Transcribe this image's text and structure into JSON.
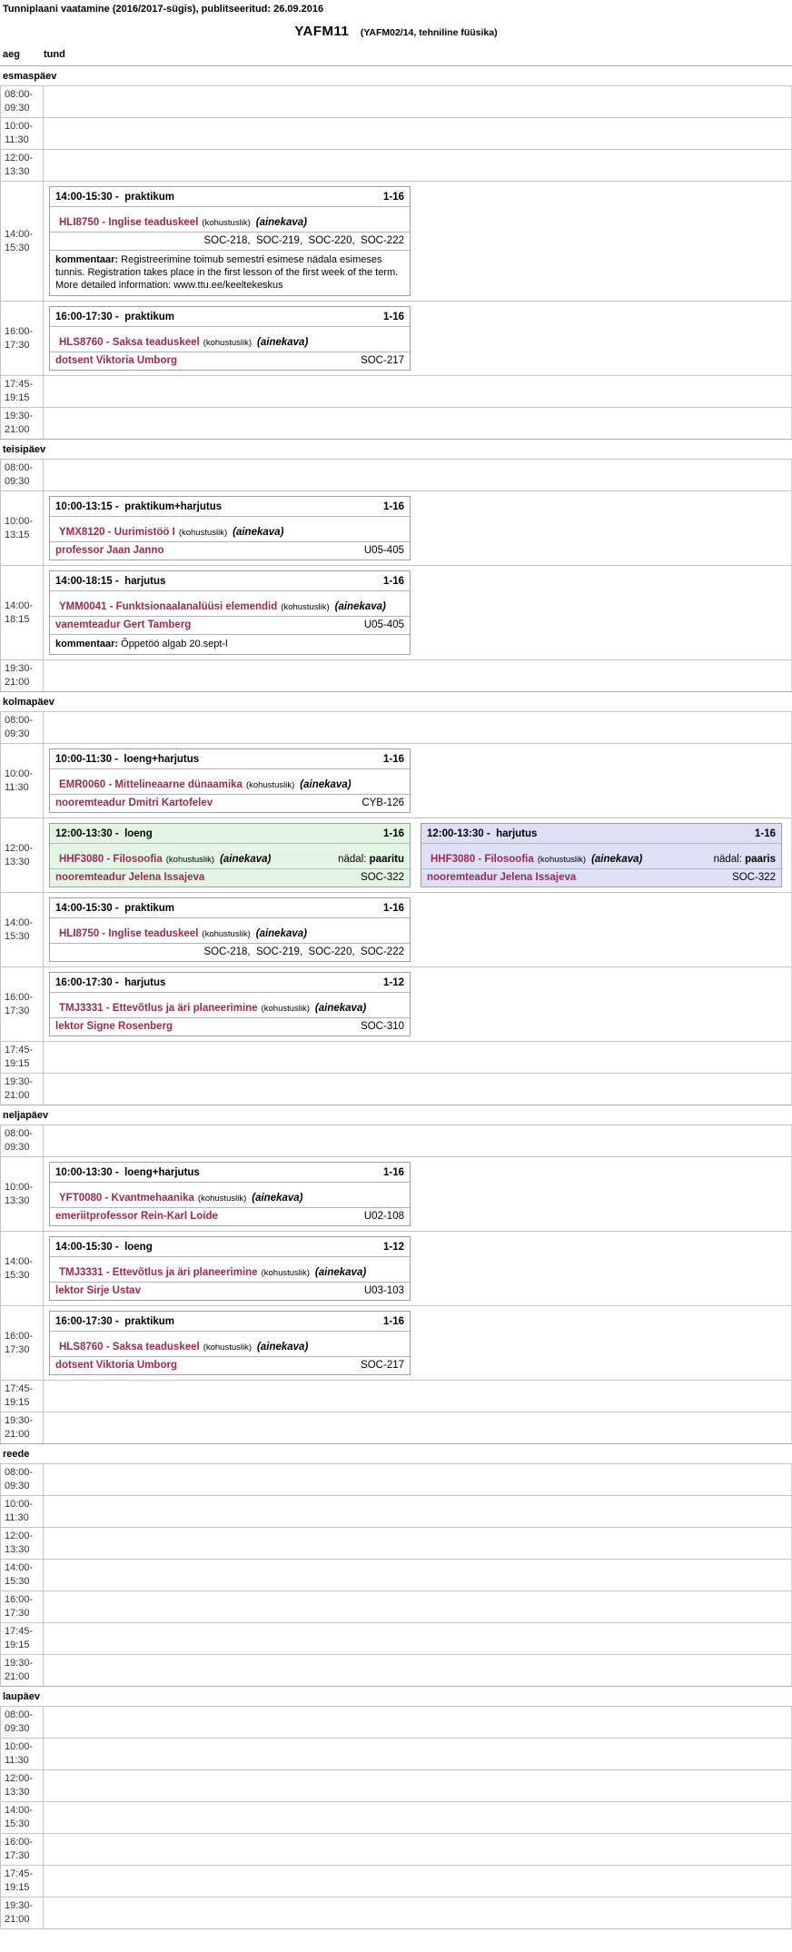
{
  "page": {
    "header": "Tunniplaani vaatamine (2016/2017-sügis), publitseeritud: 26.09.2016",
    "title": "YAFM11",
    "subtitle": "(YAFM02/14, tehniline füüsika)",
    "col_time": "aeg",
    "col_lesson": "tund",
    "comment_label": "kommentaar:"
  },
  "colors": {
    "accent": "#982b52",
    "odd_week_bg": "#e3f6e3",
    "even_week_bg": "#dfdff7",
    "row_border": "#c3c3c3",
    "box_border": "#9e9e9e"
  },
  "days": [
    {
      "name": "esmaspäev",
      "rows": [
        {
          "time": [
            "08:00-",
            "09:30"
          ],
          "events": []
        },
        {
          "time": [
            "10:00-",
            "11:30"
          ],
          "events": []
        },
        {
          "time": [
            "12:00-",
            "13:30"
          ],
          "events": []
        },
        {
          "time": [
            "14:00-",
            "15:30"
          ],
          "events": [
            {
              "title": "14:00-15:30 -  praktikum",
              "weeks": "1-16",
              "course": "HLI8750 - Inglise teaduskeel",
              "mandatory": "(kohustuslik)",
              "ainekava": "(ainekava)",
              "lecturer": "",
              "rooms": "SOC-218,  SOC-219,  SOC-220,  SOC-222",
              "comment": "Registreerimine toimub semestri esimese nädala esimeses tunnis. Registration takes place in the first lesson of the first week of the term. More detailed information: www.ttu.ee/keeltekeskus",
              "variant": "default"
            }
          ]
        },
        {
          "time": [
            "16:00-",
            "17:30"
          ],
          "events": [
            {
              "title": "16:00-17:30 -  praktikum",
              "weeks": "1-16",
              "course": "HLS8760 - Saksa teaduskeel",
              "mandatory": "(kohustuslik)",
              "ainekava": "(ainekava)",
              "lecturer": "dotsent Viktoria Umborg",
              "rooms": "SOC-217",
              "variant": "default"
            }
          ]
        },
        {
          "time": [
            "17:45-",
            "19:15"
          ],
          "events": []
        },
        {
          "time": [
            "19:30-",
            "21:00"
          ],
          "events": []
        }
      ]
    },
    {
      "name": "teisipäev",
      "rows": [
        {
          "time": [
            "08:00-",
            "09:30"
          ],
          "events": []
        },
        {
          "time": [
            "10:00-",
            "13:15"
          ],
          "events": [
            {
              "title": "10:00-13:15 -  praktikum+harjutus",
              "weeks": "1-16",
              "course": "YMX8120 - Uurimistöö I",
              "mandatory": "(kohustuslik)",
              "ainekava": "(ainekava)",
              "lecturer": "professor Jaan Janno",
              "rooms": "U05-405",
              "variant": "default"
            }
          ]
        },
        {
          "time": [
            "14:00-",
            "18:15"
          ],
          "events": [
            {
              "title": "14:00-18:15 -  harjutus",
              "weeks": "1-16",
              "course": "YMM0041 - Funktsionaalanalüüsi elemendid",
              "mandatory": "(kohustuslik)",
              "ainekava": "(ainekava)",
              "lecturer": "vanemteadur Gert Tamberg",
              "rooms": "U05-405",
              "comment": "Õppetöö algab 20.sept-l",
              "variant": "default"
            }
          ]
        },
        {
          "time": [
            "19:30-",
            "21:00"
          ],
          "events": []
        }
      ]
    },
    {
      "name": "kolmapäev",
      "rows": [
        {
          "time": [
            "08:00-",
            "09:30"
          ],
          "events": []
        },
        {
          "time": [
            "10:00-",
            "11:30"
          ],
          "events": [
            {
              "title": "10:00-11:30 -  loeng+harjutus",
              "weeks": "1-16",
              "course": "EMR0060 - Mittelineaarne dünaamika",
              "mandatory": "(kohustuslik)",
              "ainekava": "(ainekava)",
              "lecturer": "nooremteadur Dmitri Kartofelev",
              "rooms": "CYB-126",
              "variant": "default"
            }
          ]
        },
        {
          "time": [
            "12:00-",
            "13:30"
          ],
          "events": [
            {
              "title": "12:00-13:30 -  loeng",
              "weeks": "1-16",
              "course": "HHF3080 - Filosoofia",
              "mandatory": "(kohustuslik)",
              "ainekava": "(ainekava)",
              "week_note": {
                "label": "nädal:",
                "value": "paaritu"
              },
              "lecturer": "nooremteadur Jelena Issajeva",
              "rooms": "SOC-322",
              "variant": "green"
            },
            {
              "title": "12:00-13:30 -  harjutus",
              "weeks": "1-16",
              "course": "HHF3080 - Filosoofia",
              "mandatory": "(kohustuslik)",
              "ainekava": "(ainekava)",
              "week_note": {
                "label": "nädal:",
                "value": "paaris"
              },
              "lecturer": "nooremteadur Jelena Issajeva",
              "rooms": "SOC-322",
              "variant": "purple"
            }
          ]
        },
        {
          "time": [
            "14:00-",
            "15:30"
          ],
          "events": [
            {
              "title": "14:00-15:30 -  praktikum",
              "weeks": "1-16",
              "course": "HLI8750 - Inglise teaduskeel",
              "mandatory": "(kohustuslik)",
              "ainekava": "(ainekava)",
              "lecturer": "",
              "rooms": "SOC-218,  SOC-219,  SOC-220,  SOC-222",
              "variant": "default"
            }
          ]
        },
        {
          "time": [
            "16:00-",
            "17:30"
          ],
          "events": [
            {
              "title": "16:00-17:30 -  harjutus",
              "weeks": "1-12",
              "course": "TMJ3331 - Ettevõtlus ja äri planeerimine",
              "mandatory": "(kohustuslik)",
              "ainekava": "(ainekava)",
              "lecturer": "lektor Signe Rosenberg",
              "rooms": "SOC-310",
              "variant": "default"
            }
          ]
        },
        {
          "time": [
            "17:45-",
            "19:15"
          ],
          "events": []
        },
        {
          "time": [
            "19:30-",
            "21:00"
          ],
          "events": []
        }
      ]
    },
    {
      "name": "neljapäev",
      "rows": [
        {
          "time": [
            "08:00-",
            "09:30"
          ],
          "events": []
        },
        {
          "time": [
            "10:00-",
            "13:30"
          ],
          "events": [
            {
              "title": "10:00-13:30 -  loeng+harjutus",
              "weeks": "1-16",
              "course": "YFT0080 - Kvantmehaanika",
              "mandatory": "(kohustuslik)",
              "ainekava": "(ainekava)",
              "lecturer": "emeriitprofessor Rein-Karl Loide",
              "rooms": "U02-108",
              "variant": "default"
            }
          ]
        },
        {
          "time": [
            "14:00-",
            "15:30"
          ],
          "events": [
            {
              "title": "14:00-15:30 -  loeng",
              "weeks": "1-12",
              "course": "TMJ3331 - Ettevõtlus ja äri planeerimine",
              "mandatory": "(kohustuslik)",
              "ainekava": "(ainekava)",
              "lecturer": "lektor Sirje Ustav",
              "rooms": "U03-103",
              "variant": "default"
            }
          ]
        },
        {
          "time": [
            "16:00-",
            "17:30"
          ],
          "events": [
            {
              "title": "16:00-17:30 -  praktikum",
              "weeks": "1-16",
              "course": "HLS8760 - Saksa teaduskeel",
              "mandatory": "(kohustuslik)",
              "ainekava": "(ainekava)",
              "lecturer": "dotsent Viktoria Umborg",
              "rooms": "SOC-217",
              "variant": "default"
            }
          ]
        },
        {
          "time": [
            "17:45-",
            "19:15"
          ],
          "events": []
        },
        {
          "time": [
            "19:30-",
            "21:00"
          ],
          "events": []
        }
      ]
    },
    {
      "name": "reede",
      "rows": [
        {
          "time": [
            "08:00-",
            "09:30"
          ],
          "events": []
        },
        {
          "time": [
            "10:00-",
            "11:30"
          ],
          "events": []
        },
        {
          "time": [
            "12:00-",
            "13:30"
          ],
          "events": []
        },
        {
          "time": [
            "14:00-",
            "15:30"
          ],
          "events": []
        },
        {
          "time": [
            "16:00-",
            "17:30"
          ],
          "events": []
        },
        {
          "time": [
            "17:45-",
            "19:15"
          ],
          "events": []
        },
        {
          "time": [
            "19:30-",
            "21:00"
          ],
          "events": []
        }
      ]
    },
    {
      "name": "laupäev",
      "rows": [
        {
          "time": [
            "08:00-",
            "09:30"
          ],
          "events": []
        },
        {
          "time": [
            "10:00-",
            "11:30"
          ],
          "events": []
        },
        {
          "time": [
            "12:00-",
            "13:30"
          ],
          "events": []
        },
        {
          "time": [
            "14:00-",
            "15:30"
          ],
          "events": []
        },
        {
          "time": [
            "16:00-",
            "17:30"
          ],
          "events": []
        },
        {
          "time": [
            "17:45-",
            "19:15"
          ],
          "events": []
        },
        {
          "time": [
            "19:30-",
            "21:00"
          ],
          "events": []
        }
      ]
    }
  ]
}
